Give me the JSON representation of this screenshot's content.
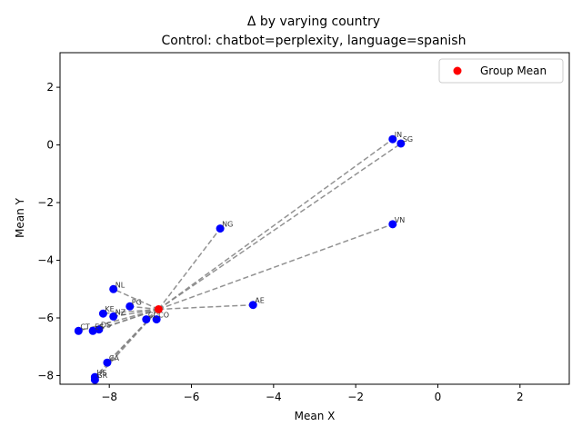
{
  "chart_data": {
    "type": "scatter",
    "title": "Δ by varying country",
    "subtitle": "Control: chatbot=perplexity, language=spanish",
    "xlabel": "Mean X",
    "ylabel": "Mean Y",
    "xlim": [
      -9.2,
      3.2
    ],
    "ylim": [
      -8.3,
      3.2
    ],
    "xticks": [
      -8,
      -6,
      -4,
      -2,
      0,
      2
    ],
    "yticks": [
      -8,
      -6,
      -4,
      -2,
      0,
      2
    ],
    "xtick_labels": [
      "−8",
      "−6",
      "−4",
      "−2",
      "0",
      "2"
    ],
    "ytick_labels": [
      "−8",
      "−6",
      "−4",
      "−2",
      "0",
      "2"
    ],
    "grid": false,
    "legend": {
      "position": "upper-right",
      "entries": [
        {
          "label": "Group Mean",
          "color": "#ff0000"
        }
      ]
    },
    "group_mean": {
      "x": -6.8,
      "y": -5.7
    },
    "points": [
      {
        "label": "IN",
        "x": -1.1,
        "y": 0.2
      },
      {
        "label": "SG",
        "x": -0.9,
        "y": 0.05
      },
      {
        "label": "VN",
        "x": -1.1,
        "y": -2.75
      },
      {
        "label": "NG",
        "x": -5.3,
        "y": -2.9
      },
      {
        "label": "NL",
        "x": -7.9,
        "y": -5.0
      },
      {
        "label": "AE",
        "x": -4.5,
        "y": -5.55
      },
      {
        "label": "PG",
        "x": -7.5,
        "y": -5.6
      },
      {
        "label": "KE",
        "x": -8.15,
        "y": -5.85
      },
      {
        "label": "NZ",
        "x": -7.9,
        "y": -5.95
      },
      {
        "label": "CL",
        "x": -7.1,
        "y": -6.05
      },
      {
        "label": "CO",
        "x": -6.85,
        "y": -6.05
      },
      {
        "label": "CT",
        "x": -8.75,
        "y": -6.45
      },
      {
        "label": "ES",
        "x": -8.4,
        "y": -6.45
      },
      {
        "label": "DS",
        "x": -8.25,
        "y": -6.4
      },
      {
        "label": "CA",
        "x": -8.05,
        "y": -7.55
      },
      {
        "label": "US",
        "x": -8.35,
        "y": -8.05
      },
      {
        "label": "GR",
        "x": -8.35,
        "y": -8.15
      }
    ],
    "colors": {
      "points": "#0000ff",
      "mean": "#ff0000",
      "lines": "#808080"
    }
  }
}
